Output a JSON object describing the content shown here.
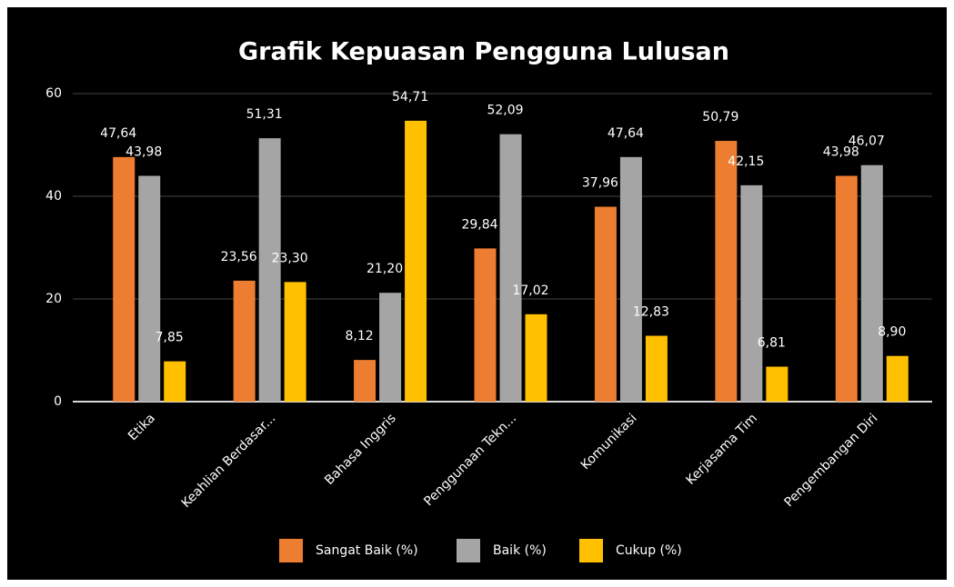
{
  "chart_data": {
    "type": "bar",
    "title": "Grafik Kepuasan Pengguna Lulusan",
    "categories": [
      "Etika",
      "Keahlian Berdasar...",
      "Bahasa Inggris",
      "Penggunaan Tekn...",
      "Komunikasi",
      "Kerjasama Tim",
      "Pengembangan Diri"
    ],
    "series": [
      {
        "name": "Sangat Baik (%)",
        "color": "#ed7d31",
        "values": [
          47.64,
          23.56,
          8.12,
          29.84,
          37.96,
          50.79,
          43.98
        ],
        "value_labels": [
          "47,64",
          "23,56",
          "8,12",
          "29,84",
          "37,96",
          "50,79",
          "43,98"
        ]
      },
      {
        "name": "Baik (%)",
        "color": "#a5a5a5",
        "values": [
          43.98,
          51.31,
          21.2,
          52.09,
          47.64,
          42.15,
          46.07
        ],
        "value_labels": [
          "43,98",
          "51,31",
          "21,20",
          "52,09",
          "47,64",
          "42,15",
          "46,07"
        ]
      },
      {
        "name": "Cukup (%)",
        "color": "#ffc000",
        "values": [
          7.85,
          23.3,
          54.71,
          17.02,
          12.83,
          6.81,
          8.9
        ],
        "value_labels": [
          "7,85",
          "23,30",
          "54,71",
          "17,02",
          "12,83",
          "6,81",
          "8,90"
        ]
      }
    ],
    "ylim": [
      0,
      60
    ],
    "yticks": [
      0,
      20,
      40,
      60
    ],
    "grid": true,
    "legend": "bottom"
  }
}
